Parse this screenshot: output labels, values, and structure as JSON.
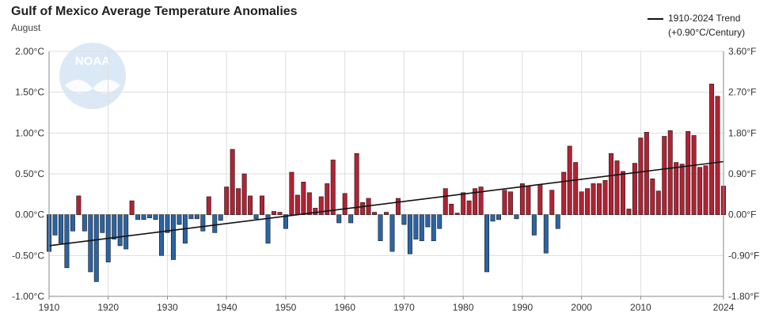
{
  "title": "Gulf of Mexico Average Temperature Anomalies",
  "subtitle": "August",
  "legend": {
    "line1": "1910-2024 Trend",
    "line2": "(+0.90°C/Century)"
  },
  "logo_text": "NOAA",
  "colors": {
    "positive": "#b22234",
    "negative": "#2b64a3",
    "trend": "#111111",
    "grid": "#dddddd"
  },
  "chart_data": {
    "type": "bar",
    "title": "Gulf of Mexico Average Temperature Anomalies",
    "subtitle": "August",
    "x_ticks": [
      1910,
      1920,
      1930,
      1940,
      1950,
      1960,
      1970,
      1980,
      1990,
      2000,
      2010,
      2024
    ],
    "y_ticks_left": [
      "-1.00°C",
      "-0.50°C",
      "0.00°C",
      "0.50°C",
      "1.00°C",
      "1.50°C",
      "2.00°C"
    ],
    "y_ticks_right": [
      "-1.80°F",
      "-0.90°F",
      "0.00°F",
      "0.90°F",
      "1.80°F",
      "2.70°F",
      "3.60°F"
    ],
    "ylim": [
      -1.0,
      2.0
    ],
    "xlim": [
      1910,
      2024
    ],
    "grid": true,
    "legend_position": "top-right",
    "years": [
      1910,
      1911,
      1912,
      1913,
      1914,
      1915,
      1916,
      1917,
      1918,
      1919,
      1920,
      1921,
      1922,
      1923,
      1924,
      1925,
      1926,
      1927,
      1928,
      1929,
      1930,
      1931,
      1932,
      1933,
      1934,
      1935,
      1936,
      1937,
      1938,
      1939,
      1940,
      1941,
      1942,
      1943,
      1944,
      1945,
      1946,
      1947,
      1948,
      1949,
      1950,
      1951,
      1952,
      1953,
      1954,
      1955,
      1956,
      1957,
      1958,
      1959,
      1960,
      1961,
      1962,
      1963,
      1964,
      1965,
      1966,
      1967,
      1968,
      1969,
      1970,
      1971,
      1972,
      1973,
      1974,
      1975,
      1976,
      1977,
      1978,
      1979,
      1980,
      1981,
      1982,
      1983,
      1984,
      1985,
      1986,
      1987,
      1988,
      1989,
      1990,
      1991,
      1992,
      1993,
      1994,
      1995,
      1996,
      1997,
      1998,
      1999,
      2000,
      2001,
      2002,
      2003,
      2004,
      2005,
      2006,
      2007,
      2008,
      2009,
      2010,
      2011,
      2012,
      2013,
      2014,
      2015,
      2016,
      2017,
      2018,
      2019,
      2020,
      2021,
      2022,
      2023,
      2024
    ],
    "values": [
      -0.45,
      -0.25,
      -0.35,
      -0.65,
      -0.2,
      0.23,
      -0.2,
      -0.7,
      -0.82,
      -0.22,
      -0.58,
      -0.3,
      -0.38,
      -0.42,
      0.17,
      -0.06,
      -0.06,
      -0.04,
      -0.06,
      -0.5,
      -0.22,
      -0.55,
      -0.12,
      -0.35,
      -0.05,
      -0.05,
      -0.2,
      0.22,
      -0.22,
      -0.07,
      0.34,
      0.8,
      0.32,
      0.5,
      0.23,
      -0.05,
      0.23,
      -0.35,
      0.04,
      0.03,
      -0.17,
      0.52,
      0.24,
      0.4,
      0.27,
      0.08,
      0.22,
      0.38,
      0.67,
      -0.1,
      0.26,
      -0.1,
      0.75,
      0.15,
      0.2,
      0.03,
      -0.32,
      0.03,
      -0.45,
      0.2,
      -0.12,
      -0.48,
      -0.3,
      -0.32,
      -0.15,
      -0.32,
      -0.17,
      0.32,
      0.13,
      0.02,
      0.27,
      0.17,
      0.32,
      0.34,
      -0.7,
      -0.08,
      -0.06,
      0.3,
      0.28,
      -0.05,
      0.38,
      0.35,
      -0.25,
      0.37,
      -0.47,
      0.3,
      -0.17,
      0.52,
      0.84,
      0.64,
      0.28,
      0.32,
      0.38,
      0.38,
      0.42,
      0.75,
      0.66,
      0.53,
      0.07,
      0.63,
      0.94,
      1.01,
      0.44,
      0.29,
      0.96,
      1.03,
      0.64,
      0.62,
      1.02,
      0.97,
      0.58,
      0.6,
      1.6,
      1.45,
      0.35
    ],
    "trend": {
      "label": "1910-2024 Trend",
      "rate": "+0.90°C/Century",
      "start": {
        "x": 1910,
        "y": -0.38
      },
      "end": {
        "x": 2024,
        "y": 0.65
      }
    }
  }
}
